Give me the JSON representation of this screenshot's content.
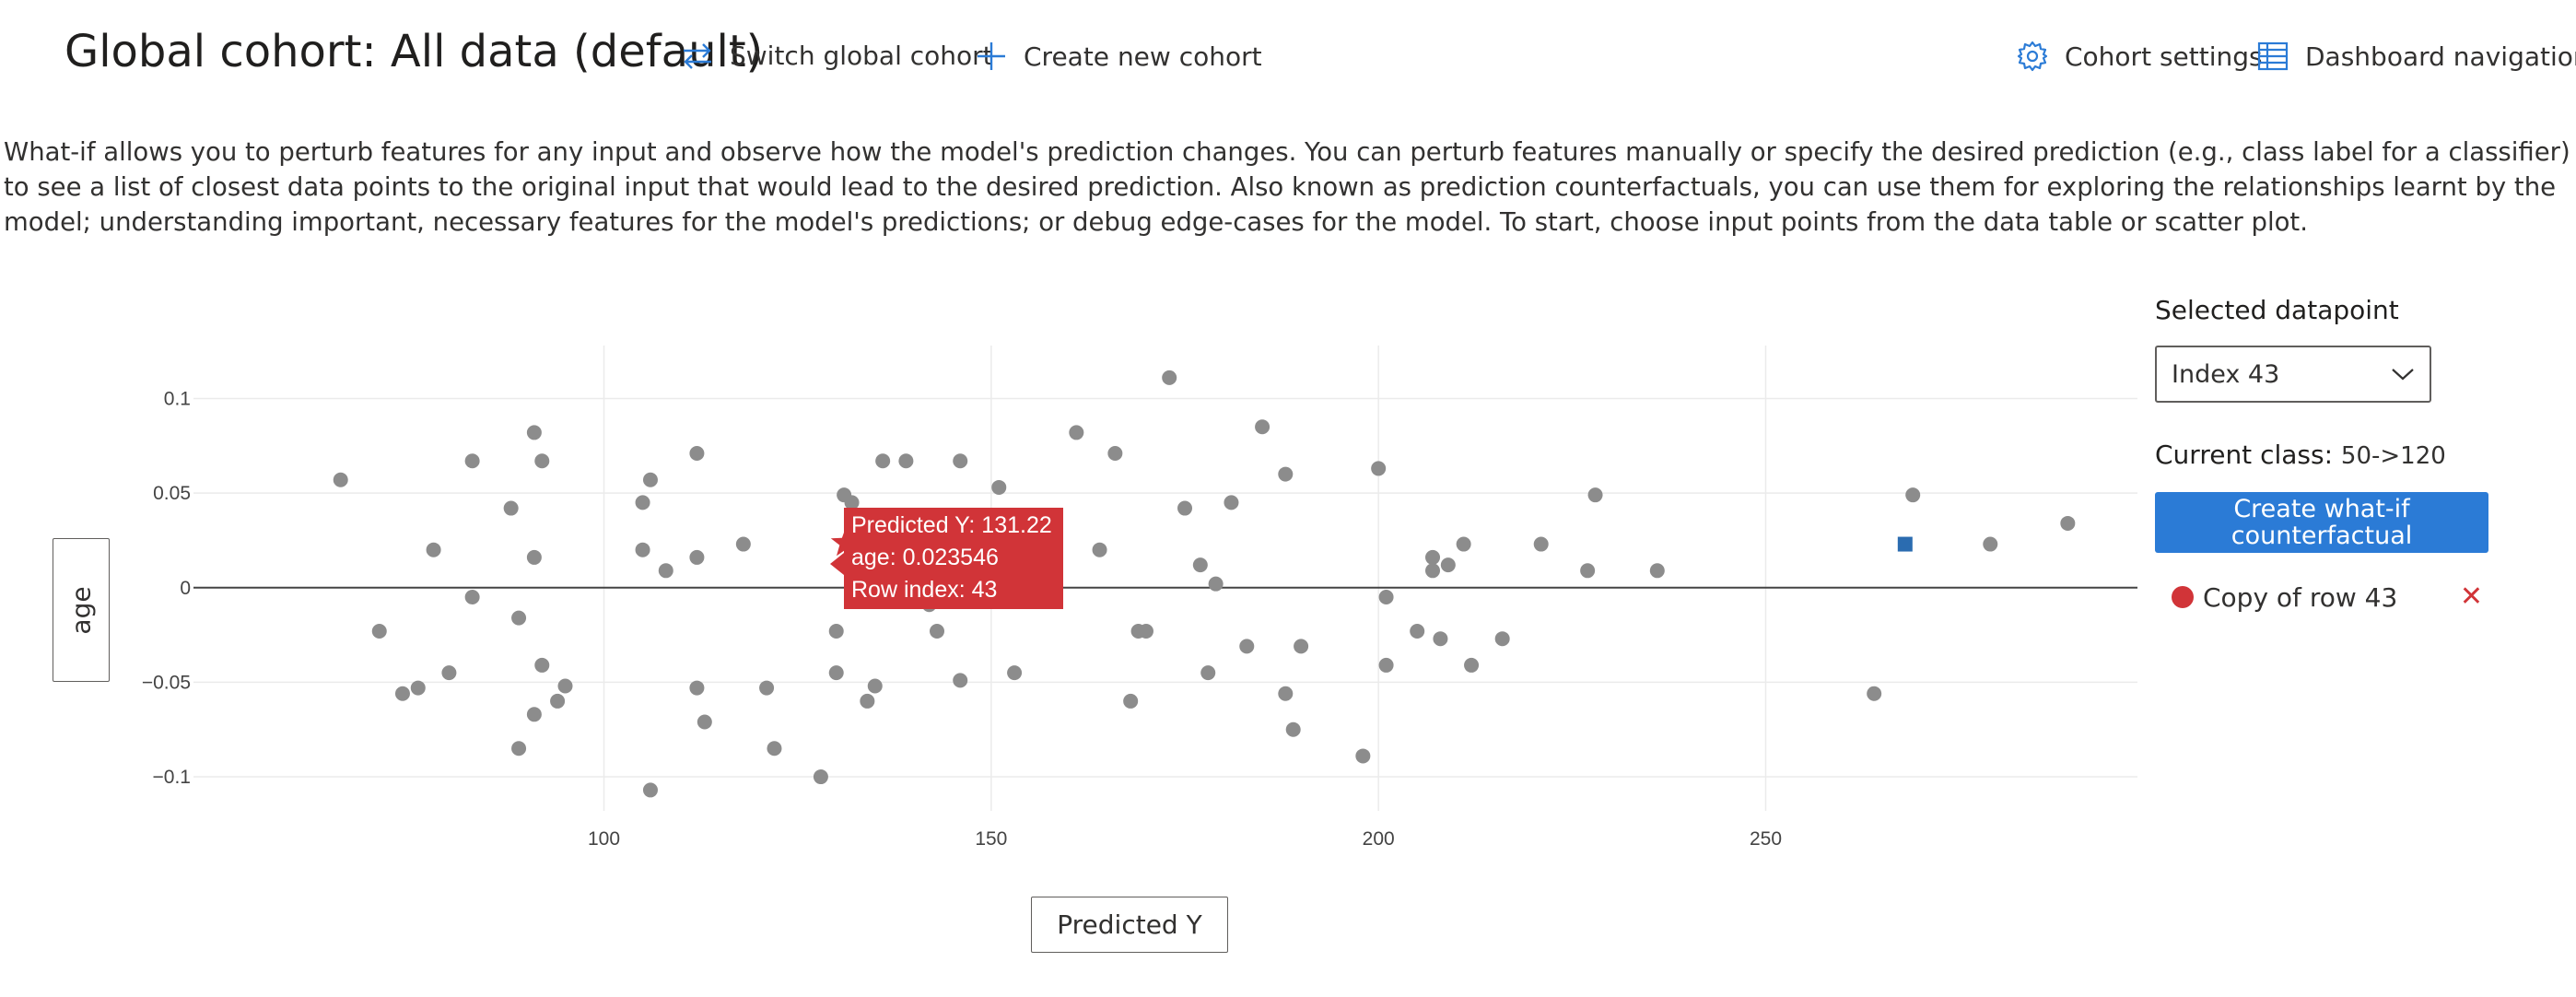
{
  "header": {
    "title": "Global cohort: All data (default)",
    "switch_label": "Switch global cohort",
    "create_label": "Create new cohort",
    "settings_label": "Cohort settings",
    "nav_label": "Dashboard navigation",
    "accent": "#2b7bd6"
  },
  "description": "What-if allows you to perturb features for any input and observe how the model's prediction changes. You can perturb features manually or specify the desired prediction (e.g., class label for a classifier) to see a list of closest data points to the original input that would lead to the desired prediction. Also known as prediction counterfactuals, you can use them for exploring the relationships learnt by the model; understanding important, necessary features for the model's predictions; or debug edge-cases for the model. To start, choose input points from the data table or scatter plot.",
  "plot": {
    "ylabel": "age",
    "xlabel": "Predicted Y",
    "tooltip": {
      "line1": "Predicted Y: 131.22",
      "line2": "age: 0.023546",
      "line3": "Row index: 43"
    }
  },
  "side": {
    "selected_label": "Selected datapoint",
    "selected_value": "Index 43",
    "current_class_label": "Current class:",
    "current_class_value": "50->120",
    "create_button": "Create what-if counterfactual",
    "copy_label": "Copy of row 43"
  },
  "chart_data": {
    "type": "scatter",
    "xlabel": "Predicted Y",
    "ylabel": "age",
    "xlim": [
      47,
      298
    ],
    "ylim": [
      -0.118,
      0.128
    ],
    "xticks": [
      100,
      150,
      200,
      250
    ],
    "yticks": [
      0.1,
      0.05,
      0,
      -0.05,
      -0.1
    ],
    "ytick_labels": [
      "0.1",
      "0.05",
      "0",
      "−0.05",
      "−0.1"
    ],
    "grid": true,
    "point_color": "#8c8c8c",
    "selected": {
      "x": 131.22,
      "y": 0.023546,
      "color": "#d13438",
      "marker": "star"
    },
    "counterfactual": {
      "x": 268,
      "y": 0.023,
      "color": "#2b6cb0",
      "marker": "square"
    },
    "points": [
      [
        66,
        0.057
      ],
      [
        71,
        -0.023
      ],
      [
        74,
        -0.056
      ],
      [
        76,
        -0.053
      ],
      [
        78,
        0.02
      ],
      [
        80,
        -0.045
      ],
      [
        83,
        -0.005
      ],
      [
        83,
        0.067
      ],
      [
        88,
        0.042
      ],
      [
        89,
        -0.016
      ],
      [
        89,
        -0.085
      ],
      [
        91,
        0.082
      ],
      [
        91,
        0.016
      ],
      [
        91,
        -0.067
      ],
      [
        92,
        0.067
      ],
      [
        92,
        -0.041
      ],
      [
        94,
        -0.06
      ],
      [
        95,
        -0.052
      ],
      [
        105,
        0.045
      ],
      [
        105,
        0.02
      ],
      [
        106,
        0.057
      ],
      [
        106,
        -0.107
      ],
      [
        108,
        0.009
      ],
      [
        112,
        0.071
      ],
      [
        112,
        0.016
      ],
      [
        112,
        -0.053
      ],
      [
        113,
        -0.071
      ],
      [
        118,
        0.023
      ],
      [
        121,
        -0.053
      ],
      [
        122,
        -0.085
      ],
      [
        128,
        -0.1
      ],
      [
        130,
        -0.023
      ],
      [
        130,
        -0.045
      ],
      [
        131,
        0.049
      ],
      [
        132,
        0.045
      ],
      [
        134,
        -0.06
      ],
      [
        135,
        -0.052
      ],
      [
        136,
        0.067
      ],
      [
        139,
        0.067
      ],
      [
        142,
        -0.009
      ],
      [
        143,
        -0.023
      ],
      [
        146,
        0.067
      ],
      [
        146,
        -0.049
      ],
      [
        151,
        0.053
      ],
      [
        153,
        -0.045
      ],
      [
        161,
        0.082
      ],
      [
        164,
        0.02
      ],
      [
        166,
        0.071
      ],
      [
        168,
        -0.06
      ],
      [
        169,
        -0.023
      ],
      [
        170,
        -0.023
      ],
      [
        173,
        0.111
      ],
      [
        175,
        0.042
      ],
      [
        177,
        0.012
      ],
      [
        178,
        -0.045
      ],
      [
        179,
        0.002
      ],
      [
        181,
        0.045
      ],
      [
        183,
        -0.031
      ],
      [
        185,
        0.085
      ],
      [
        188,
        0.06
      ],
      [
        188,
        -0.056
      ],
      [
        189,
        -0.075
      ],
      [
        190,
        -0.031
      ],
      [
        198,
        -0.089
      ],
      [
        200,
        0.063
      ],
      [
        201,
        -0.005
      ],
      [
        201,
        -0.041
      ],
      [
        205,
        -0.023
      ],
      [
        207,
        0.016
      ],
      [
        207,
        0.009
      ],
      [
        208,
        -0.027
      ],
      [
        209,
        0.012
      ],
      [
        211,
        0.023
      ],
      [
        212,
        -0.041
      ],
      [
        216,
        -0.027
      ],
      [
        221,
        0.023
      ],
      [
        227,
        0.009
      ],
      [
        228,
        0.049
      ],
      [
        236,
        0.009
      ],
      [
        264,
        -0.056
      ],
      [
        269,
        0.049
      ],
      [
        279,
        0.023
      ],
      [
        289,
        0.034
      ]
    ]
  }
}
